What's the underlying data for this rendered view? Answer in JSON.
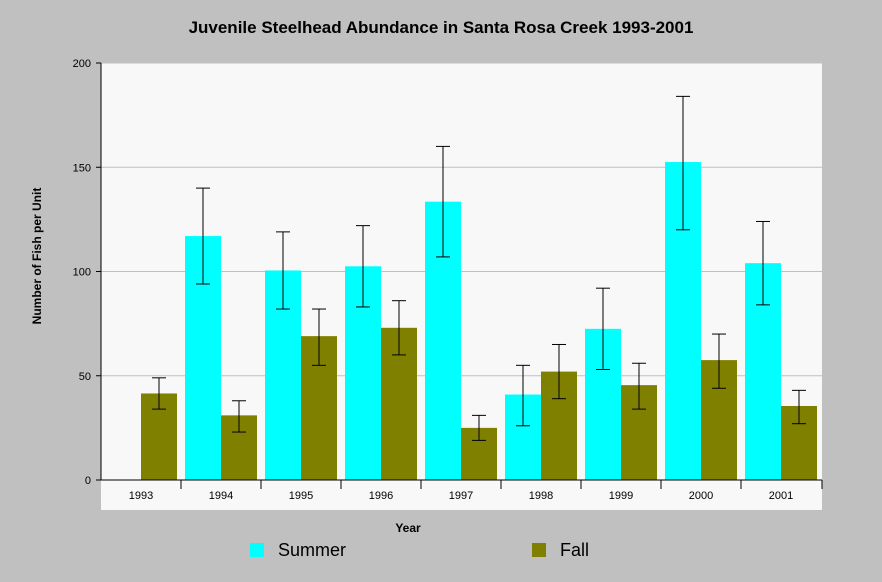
{
  "chart_data": {
    "type": "bar",
    "title": "Juvenile Steelhead Abundance in Santa Rosa Creek 1993-2001",
    "xlabel": "Year",
    "ylabel": "Number of Fish per Unit",
    "ylim": [
      0,
      200
    ],
    "yticks": [
      "0",
      "50",
      "100",
      "150",
      "200"
    ],
    "categories": [
      "1993",
      "1994",
      "1995",
      "1996",
      "1997",
      "1998",
      "1999",
      "2000",
      "2001"
    ],
    "grid": true,
    "legend_position": "bottom",
    "series": [
      {
        "name": "Summer",
        "color": "#00ffff",
        "values": [
          null,
          117,
          100.5,
          102.5,
          133.5,
          41,
          72.5,
          152.5,
          104
        ],
        "error_low": [
          null,
          94,
          82,
          83,
          107,
          26,
          53,
          120,
          84
        ],
        "error_high": [
          null,
          140,
          119,
          122,
          160,
          55,
          92,
          184,
          124
        ]
      },
      {
        "name": "Fall",
        "color": "#808000",
        "values": [
          41.5,
          31,
          69,
          73,
          25,
          52,
          45.5,
          57.5,
          35.5
        ],
        "error_low": [
          34,
          23,
          55,
          60,
          19,
          39,
          34,
          44,
          27
        ],
        "error_high": [
          49,
          38,
          82,
          86,
          31,
          65,
          56,
          70,
          43
        ]
      }
    ]
  }
}
